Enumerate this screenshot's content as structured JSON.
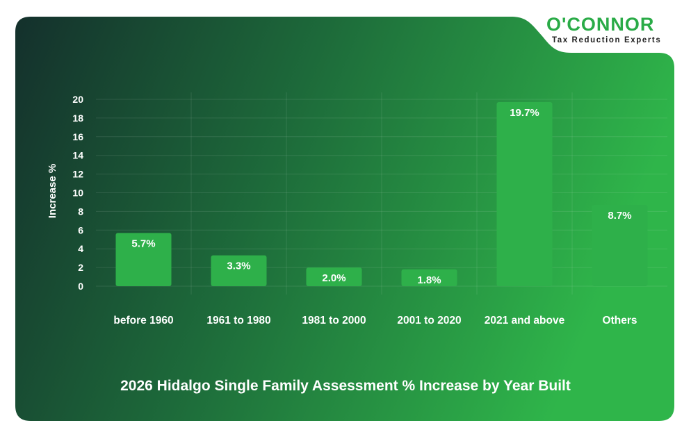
{
  "brand": {
    "name": "O'CONNOR",
    "tagline": "Tax Reduction Experts"
  },
  "colors": {
    "bar": "#2eb04a",
    "bg_dark": "#14302c",
    "bg_light": "#2fb54a",
    "text": "#ffffff",
    "brand_green": "#2aab47"
  },
  "chart_data": {
    "type": "bar",
    "title": "2026 Hidalgo Single Family Assessment % Increase by Year Built",
    "xlabel": "",
    "ylabel": "Increase %",
    "ylim": [
      0,
      20
    ],
    "yticks": [
      0,
      2,
      4,
      6,
      8,
      10,
      12,
      14,
      16,
      18,
      20
    ],
    "categories": [
      "before 1960",
      "1961 to 1980",
      "1981 to 2000",
      "2001 to 2020",
      "2021 and above",
      "Others"
    ],
    "values": [
      5.7,
      3.3,
      2.0,
      1.8,
      19.7,
      8.7
    ],
    "data_labels": [
      "5.7%",
      "3.3%",
      "2.0%",
      "1.8%",
      "19.7%",
      "8.7%"
    ],
    "grid": true,
    "legend": "none"
  }
}
